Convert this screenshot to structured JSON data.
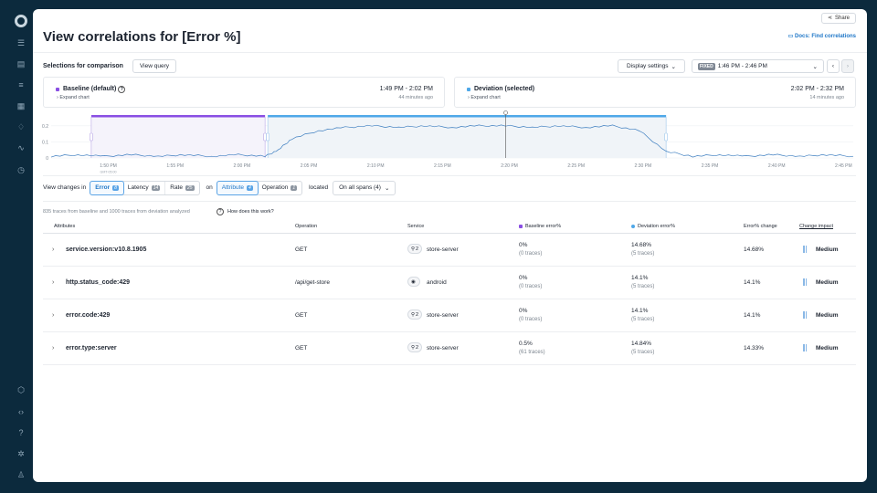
{
  "rail": {
    "icons": [
      "logo-icon",
      "list-icon",
      "document-icon",
      "filter-list-icon",
      "grid-icon",
      "bell-icon",
      "activity-icon",
      "clock-icon",
      "cube-icon",
      "code-icon",
      "help-icon",
      "settings-icon",
      "user-icon"
    ]
  },
  "header": {
    "share_label": "Share",
    "title": "View correlations for [Error %]",
    "docs_label": "Docs: Find correlations"
  },
  "toolbar": {
    "selections_label": "Selections for comparison",
    "view_query_label": "View query",
    "display_settings_label": "Display settings",
    "fixed_badge": "FIXED",
    "time_range": "1:46 PM - 2:46 PM"
  },
  "baseline": {
    "name": "Baseline (default)",
    "expand": "Expand chart",
    "time": "1:49 PM - 2:02 PM",
    "ago": "44 minutes ago",
    "color": "#8a4fe3"
  },
  "deviation": {
    "name": "Deviation (selected)",
    "expand": "Expand chart",
    "time": "2:02 PM - 2:32 PM",
    "ago": "14 minutes ago",
    "color": "#4fa8e8"
  },
  "chart_data": {
    "type": "area",
    "y_ticks": [
      "0.2",
      "0.1",
      "0"
    ],
    "x_ticks": [
      "1:50 PM",
      "1:55 PM",
      "2:00 PM",
      "2:05 PM",
      "2:10 PM",
      "2:15 PM",
      "2:20 PM",
      "2:25 PM",
      "2:30 PM",
      "2:35 PM",
      "2:40 PM",
      "2:45 PM"
    ],
    "x_subtick": "GMT-05:00",
    "ylim": [
      0,
      0.25
    ],
    "series": [
      {
        "x": [
          "1:46",
          "1:48",
          "1:50",
          "1:52",
          "1:54",
          "1:56",
          "1:58",
          "2:00",
          "2:02",
          "2:03",
          "2:04",
          "2:06",
          "2:08",
          "2:10",
          "2:12",
          "2:14",
          "2:16",
          "2:18",
          "2:20",
          "2:22",
          "2:24",
          "2:26",
          "2:28",
          "2:30",
          "2:32",
          "2:34",
          "2:36",
          "2:38",
          "2:40",
          "2:42",
          "2:44",
          "2:46"
        ],
        "values": [
          0.01,
          0.02,
          0.01,
          0.02,
          0.01,
          0.02,
          0.01,
          0.02,
          0.01,
          0.05,
          0.12,
          0.17,
          0.19,
          0.2,
          0.19,
          0.2,
          0.19,
          0.2,
          0.2,
          0.19,
          0.2,
          0.19,
          0.2,
          0.17,
          0.04,
          0.01,
          0.02,
          0.01,
          0.02,
          0.01,
          0.02,
          0.01
        ]
      }
    ]
  },
  "filters": {
    "view_changes_in": "View changes in",
    "metrics": [
      {
        "label": "Error",
        "count": "8"
      },
      {
        "label": "Latency",
        "count": "14"
      },
      {
        "label": "Rate",
        "count": "25"
      }
    ],
    "on": "on",
    "groups": [
      {
        "label": "Attribute",
        "count": "4"
      },
      {
        "label": "Operation",
        "count": "1"
      }
    ],
    "located": "located",
    "spans_label": "On all spans (4)"
  },
  "summary": {
    "note": "835 traces from baseline and 1000 traces from deviation analyzed",
    "how": "How does this work?"
  },
  "table": {
    "headers": {
      "attributes": "Attributes",
      "operation": "Operation",
      "service": "Service",
      "baseline": "Baseline error%",
      "deviation": "Deviation error%",
      "change": "Error% change",
      "impact": "Change impact"
    },
    "rows": [
      {
        "attr": "service.version:v10.8.1905",
        "op": "GET",
        "svc_count": "2",
        "svc": "store-server",
        "b1": "0%",
        "b2": "(0 traces)",
        "d1": "14.68%",
        "d2": "(5 traces)",
        "chg": "14.68%",
        "impact": "Medium"
      },
      {
        "attr": "http.status_code:429",
        "op": "/api/get-store",
        "svc_count": "",
        "svc": "android",
        "b1": "0%",
        "b2": "(0 traces)",
        "d1": "14.1%",
        "d2": "(5 traces)",
        "chg": "14.1%",
        "impact": "Medium"
      },
      {
        "attr": "error.code:429",
        "op": "GET",
        "svc_count": "2",
        "svc": "store-server",
        "b1": "0%",
        "b2": "(0 traces)",
        "d1": "14.1%",
        "d2": "(5 traces)",
        "chg": "14.1%",
        "impact": "Medium"
      },
      {
        "attr": "error.type:server",
        "op": "GET",
        "svc_count": "2",
        "svc": "store-server",
        "b1": "0.5%",
        "b2": "(61 traces)",
        "d1": "14.84%",
        "d2": "(5 traces)",
        "chg": "14.33%",
        "impact": "Medium"
      }
    ]
  }
}
